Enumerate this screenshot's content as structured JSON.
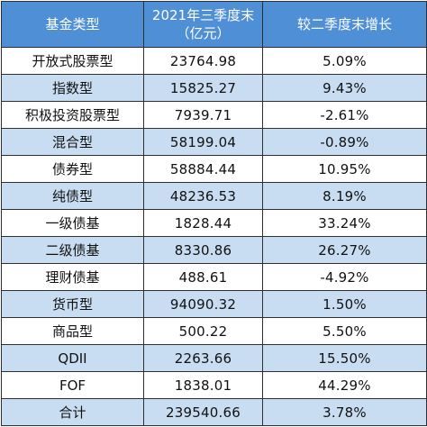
{
  "table": {
    "headers": [
      "基金类型",
      "2021年三季度末（亿元）",
      "较二季度末增长"
    ],
    "rows": [
      [
        "开放式股票型",
        "23764.98",
        "5.09%"
      ],
      [
        "指数型",
        "15825.27",
        "9.43%"
      ],
      [
        "积极投资股票型",
        "7939.71",
        "-2.61%"
      ],
      [
        "混合型",
        "58199.04",
        "-0.89%"
      ],
      [
        "债券型",
        "58884.44",
        "10.95%"
      ],
      [
        "纯债型",
        "48236.53",
        "8.19%"
      ],
      [
        "一级债基",
        "1828.44",
        "33.24%"
      ],
      [
        "二级债基",
        "8330.86",
        "26.27%"
      ],
      [
        "理财债基",
        "488.61",
        "-4.92%"
      ],
      [
        "货币型",
        "94090.32",
        "1.50%"
      ],
      [
        "商品型",
        "500.22",
        "5.50%"
      ],
      [
        "QDII",
        "2263.66",
        "15.50%"
      ],
      [
        "FOF",
        "1838.01",
        "44.29%"
      ],
      [
        "合计",
        "239540.66",
        "3.78%"
      ]
    ]
  },
  "colors": {
    "header_bg": "#4f8fd6",
    "alt_row_bg": "#c8ddf2",
    "row_bg": "#ffffff",
    "border": "#2f2f2f"
  }
}
